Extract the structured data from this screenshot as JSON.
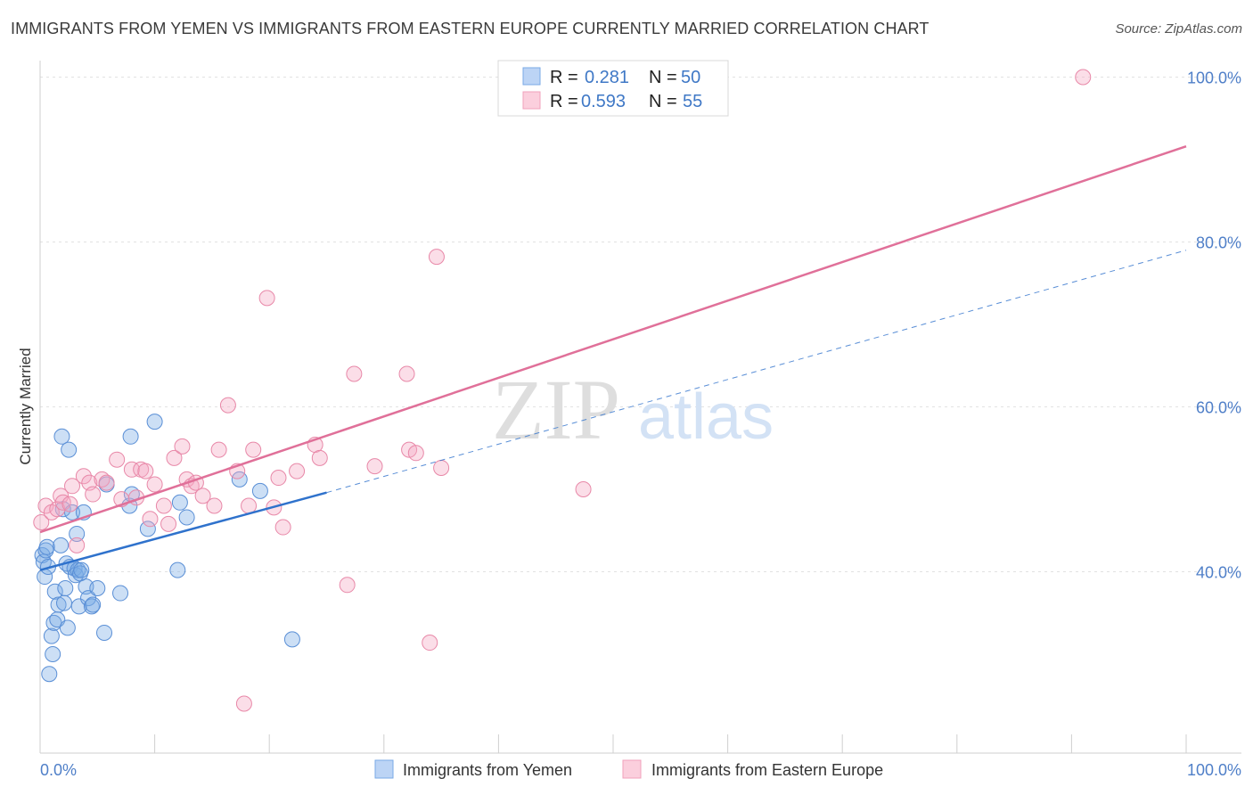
{
  "header": {
    "title": "IMMIGRANTS FROM YEMEN VS IMMIGRANTS FROM EASTERN EUROPE CURRENTLY MARRIED CORRELATION CHART",
    "source": "Source: ZipAtlas.com"
  },
  "legend": {
    "r_label": "R =",
    "n_label": "N =",
    "series": [
      {
        "r": "0.281",
        "n": "50"
      },
      {
        "r": "0.593",
        "n": "55"
      }
    ]
  },
  "watermark": {
    "zip": "ZIP",
    "atlas": "atlas"
  },
  "chart_data": {
    "type": "scatter",
    "title": "IMMIGRANTS FROM YEMEN VS IMMIGRANTS FROM EASTERN EUROPE CURRENTLY MARRIED CORRELATION CHART",
    "xlabel": "",
    "ylabel": "Currently Married",
    "xlim": [
      0,
      100
    ],
    "ylim": [
      18,
      102
    ],
    "x_tick_labels": [
      {
        "value": 0,
        "label": "0.0%"
      },
      {
        "value": 100,
        "label": "100.0%"
      }
    ],
    "y_tick_labels": [
      {
        "value": 40,
        "label": "40.0%"
      },
      {
        "value": 60,
        "label": "60.0%"
      },
      {
        "value": 80,
        "label": "80.0%"
      },
      {
        "value": 100,
        "label": "100.0%"
      }
    ],
    "y_gridlines": [
      40,
      60,
      80,
      100
    ],
    "x_minor_ticks": [
      10,
      20,
      30,
      40,
      50,
      60,
      70,
      80,
      90,
      100
    ],
    "grid": true,
    "legend_position": "top-center",
    "series": [
      {
        "name": "Immigrants from Yemen",
        "color": "#7aaae6",
        "stroke": "#5a8fd6",
        "r": 0.281,
        "n": 50,
        "trend": {
          "x0": 0,
          "y0": 40.2,
          "x1": 25,
          "y1": 49.6,
          "color": "#2f72cc",
          "dash_to_x": 100,
          "dash_to_y": 79.0
        },
        "points": [
          [
            0.2,
            42.0
          ],
          [
            0.3,
            41.2
          ],
          [
            0.4,
            39.4
          ],
          [
            0.5,
            42.6
          ],
          [
            0.6,
            43.0
          ],
          [
            0.7,
            40.6
          ],
          [
            0.8,
            27.6
          ],
          [
            1.0,
            32.2
          ],
          [
            1.1,
            30.0
          ],
          [
            1.2,
            33.8
          ],
          [
            1.3,
            37.6
          ],
          [
            1.5,
            34.2
          ],
          [
            1.6,
            36.0
          ],
          [
            1.8,
            43.2
          ],
          [
            1.9,
            56.4
          ],
          [
            2.0,
            47.6
          ],
          [
            2.1,
            36.2
          ],
          [
            2.2,
            38.0
          ],
          [
            2.3,
            41.0
          ],
          [
            2.4,
            33.2
          ],
          [
            2.5,
            54.8
          ],
          [
            2.6,
            40.6
          ],
          [
            2.8,
            47.2
          ],
          [
            3.0,
            40.4
          ],
          [
            3.1,
            39.6
          ],
          [
            3.2,
            44.6
          ],
          [
            3.3,
            40.2
          ],
          [
            3.4,
            35.8
          ],
          [
            3.5,
            39.8
          ],
          [
            3.6,
            40.2
          ],
          [
            3.8,
            47.2
          ],
          [
            4.0,
            38.2
          ],
          [
            4.2,
            36.8
          ],
          [
            4.5,
            35.8
          ],
          [
            4.6,
            36.0
          ],
          [
            5.0,
            38.0
          ],
          [
            5.6,
            32.6
          ],
          [
            5.8,
            50.6
          ],
          [
            7.0,
            37.4
          ],
          [
            7.8,
            48.0
          ],
          [
            7.9,
            56.4
          ],
          [
            8.0,
            49.4
          ],
          [
            9.4,
            45.2
          ],
          [
            10.0,
            58.2
          ],
          [
            12.0,
            40.2
          ],
          [
            12.2,
            48.4
          ],
          [
            12.8,
            46.6
          ],
          [
            17.4,
            51.2
          ],
          [
            19.2,
            49.8
          ],
          [
            22.0,
            31.8
          ]
        ]
      },
      {
        "name": "Immigrants from Eastern Europe",
        "color": "#f5a8c2",
        "stroke": "#e888a8",
        "r": 0.593,
        "n": 55,
        "trend": {
          "x0": 0,
          "y0": 44.8,
          "x1": 100,
          "y1": 91.6,
          "color": "#e07099"
        },
        "points": [
          [
            0.1,
            46.0
          ],
          [
            0.5,
            48.0
          ],
          [
            1.0,
            47.2
          ],
          [
            1.5,
            47.6
          ],
          [
            1.8,
            49.2
          ],
          [
            2.0,
            48.4
          ],
          [
            2.6,
            48.2
          ],
          [
            2.8,
            50.4
          ],
          [
            3.2,
            43.2
          ],
          [
            3.8,
            51.6
          ],
          [
            4.3,
            50.8
          ],
          [
            4.6,
            49.4
          ],
          [
            5.4,
            51.2
          ],
          [
            5.8,
            50.8
          ],
          [
            6.7,
            53.6
          ],
          [
            7.1,
            48.8
          ],
          [
            8.0,
            52.4
          ],
          [
            8.4,
            49.0
          ],
          [
            8.8,
            52.4
          ],
          [
            9.2,
            52.2
          ],
          [
            9.6,
            46.4
          ],
          [
            10.0,
            50.6
          ],
          [
            10.8,
            48.0
          ],
          [
            11.2,
            45.8
          ],
          [
            11.7,
            53.8
          ],
          [
            12.4,
            55.2
          ],
          [
            12.8,
            51.2
          ],
          [
            13.2,
            50.4
          ],
          [
            13.6,
            50.8
          ],
          [
            14.2,
            49.2
          ],
          [
            15.2,
            48.0
          ],
          [
            15.6,
            54.8
          ],
          [
            16.4,
            60.2
          ],
          [
            17.2,
            52.2
          ],
          [
            17.8,
            24.0
          ],
          [
            18.2,
            48.0
          ],
          [
            18.6,
            54.8
          ],
          [
            19.8,
            73.2
          ],
          [
            20.4,
            47.8
          ],
          [
            20.8,
            51.4
          ],
          [
            21.2,
            45.4
          ],
          [
            22.4,
            52.2
          ],
          [
            24.0,
            55.4
          ],
          [
            24.4,
            53.8
          ],
          [
            26.8,
            38.4
          ],
          [
            27.4,
            64.0
          ],
          [
            29.2,
            52.8
          ],
          [
            32.0,
            64.0
          ],
          [
            32.2,
            54.8
          ],
          [
            32.8,
            54.4
          ],
          [
            34.0,
            31.4
          ],
          [
            34.6,
            78.2
          ],
          [
            35.0,
            52.6
          ],
          [
            47.4,
            50.0
          ],
          [
            91.0,
            100.0
          ]
        ]
      }
    ]
  }
}
